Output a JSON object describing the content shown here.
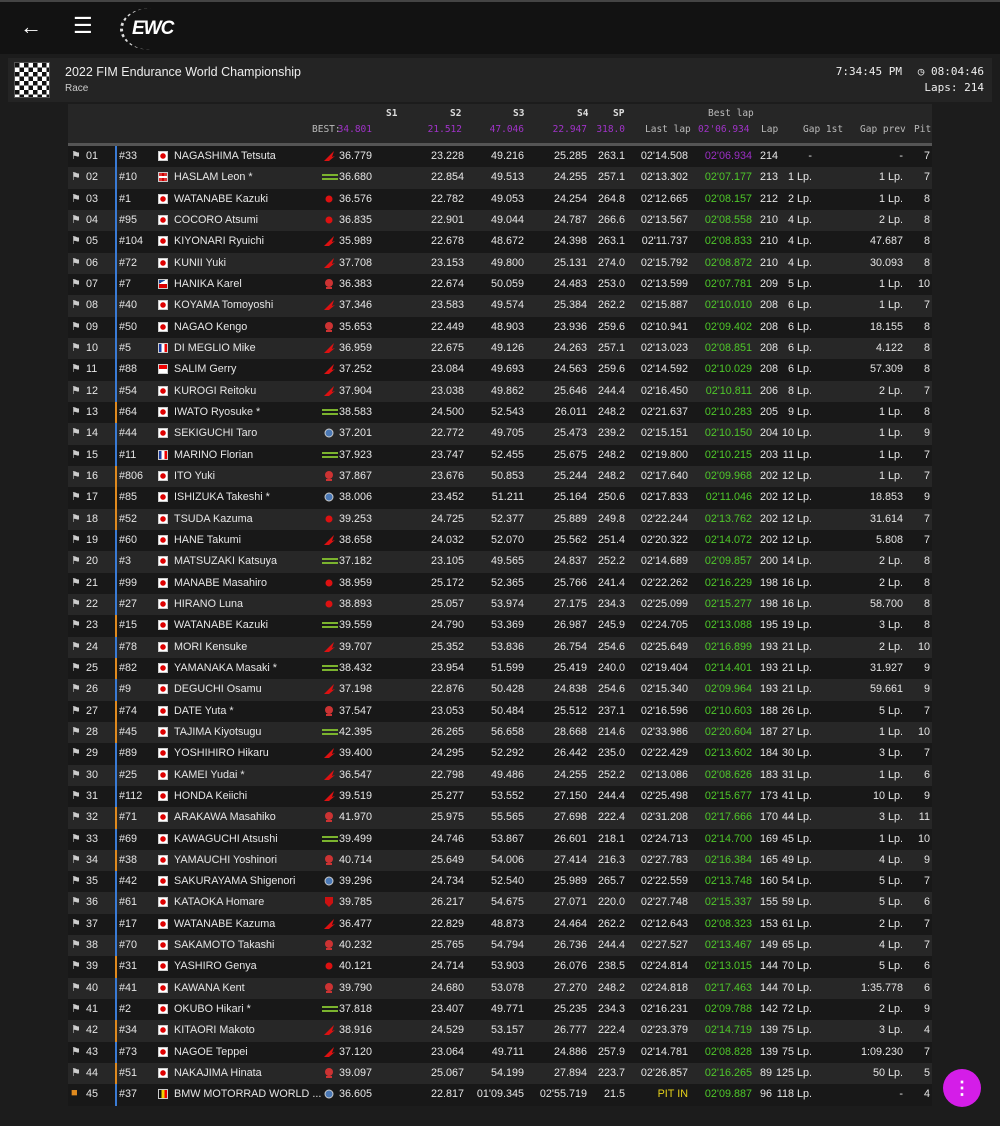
{
  "app": {
    "logo_text": "EWC"
  },
  "event": {
    "title": "2022 FIM Endurance World Championship",
    "session": "Race",
    "time": "7:34:45 PM",
    "remaining": "08:04:46",
    "laps": "Laps: 214"
  },
  "columns": {
    "best_label": "BEST:",
    "s1": "S1",
    "s2": "S2",
    "s3": "S3",
    "s4": "S4",
    "sp": "SP",
    "last_lap": "Last lap",
    "best_lap": "Best lap",
    "lap": "Lap",
    "gap_1st": "Gap 1st",
    "gap_prev": "Gap prev",
    "pit": "Pit"
  },
  "best": {
    "s1": "34.801",
    "s2": "21.512",
    "s3": "47.046",
    "s4": "22.947",
    "sp": "318.0",
    "best_lap": "02'06.934"
  },
  "colors": {
    "accent_purple": "#a033c8",
    "best_green": "#4fc82a",
    "fab": "#d41de8",
    "class_blue": "#3a7bd5",
    "class_orange": "#e08a1e"
  },
  "rows": [
    {
      "pos": "01",
      "num": "#33",
      "cls": "b",
      "flag": "jp",
      "name": "NAGASHIMA Tetsuta",
      "mfr": "honda",
      "s1": "36.779",
      "s2": "23.228",
      "s3": "49.216",
      "s4": "25.285",
      "sp": "263.1",
      "last": "02'14.508",
      "best": "02'06.934",
      "bestp": true,
      "lap": "214",
      "gap1": "-",
      "gapp": "-",
      "pit": "7"
    },
    {
      "pos": "02",
      "num": "#10",
      "cls": "b",
      "flag": "gb",
      "name": "HASLAM Leon *",
      "mfr": "kawasaki",
      "s1": "36.680",
      "s2": "22.854",
      "s3": "49.513",
      "s4": "24.255",
      "sp": "257.1",
      "last": "02'13.302",
      "best": "02'07.177",
      "lap": "213",
      "gap1": "1 Lp.",
      "gapp": "1 Lp.",
      "pit": "7"
    },
    {
      "pos": "03",
      "num": "#1",
      "cls": "b",
      "flag": "jp",
      "name": "WATANABE Kazuki",
      "mfr": "yamaha",
      "s1": "36.576",
      "s2": "22.782",
      "s3": "49.053",
      "s4": "24.254",
      "sp": "264.8",
      "last": "02'12.665",
      "best": "02'08.157",
      "lap": "212",
      "gap1": "2 Lp.",
      "gapp": "1 Lp.",
      "pit": "8"
    },
    {
      "pos": "04",
      "num": "#95",
      "cls": "b",
      "flag": "jp",
      "name": "COCORO Atsumi",
      "mfr": "yamaha",
      "s1": "36.835",
      "s2": "22.901",
      "s3": "49.044",
      "s4": "24.787",
      "sp": "266.6",
      "last": "02'13.567",
      "best": "02'08.558",
      "lap": "210",
      "gap1": "4 Lp.",
      "gapp": "2 Lp.",
      "pit": "8"
    },
    {
      "pos": "05",
      "num": "#104",
      "cls": "b",
      "flag": "jp",
      "name": "KIYONARI Ryuichi",
      "mfr": "honda",
      "s1": "35.989",
      "s2": "22.678",
      "s3": "48.672",
      "s4": "24.398",
      "sp": "263.1",
      "last": "02'11.737",
      "best": "02'08.833",
      "lap": "210",
      "gap1": "4 Lp.",
      "gapp": "47.687",
      "pit": "8"
    },
    {
      "pos": "06",
      "num": "#72",
      "cls": "b",
      "flag": "jp",
      "name": "KUNII Yuki",
      "mfr": "honda",
      "s1": "37.708",
      "s2": "23.153",
      "s3": "49.800",
      "s4": "25.131",
      "sp": "274.0",
      "last": "02'15.792",
      "best": "02'08.872",
      "lap": "210",
      "gap1": "4 Lp.",
      "gapp": "30.093",
      "pit": "8"
    },
    {
      "pos": "07",
      "num": "#7",
      "cls": "b",
      "flag": "cz",
      "name": "HANIKA Karel",
      "mfr": "suzuki",
      "s1": "36.383",
      "s2": "22.674",
      "s3": "50.059",
      "s4": "24.483",
      "sp": "253.0",
      "last": "02'13.599",
      "best": "02'07.781",
      "lap": "209",
      "gap1": "5 Lp.",
      "gapp": "1 Lp.",
      "pit": "10"
    },
    {
      "pos": "08",
      "num": "#40",
      "cls": "b",
      "flag": "jp",
      "name": "KOYAMA Tomoyoshi",
      "mfr": "honda",
      "s1": "37.346",
      "s2": "23.583",
      "s3": "49.574",
      "s4": "25.384",
      "sp": "262.2",
      "last": "02'15.887",
      "best": "02'10.010",
      "lap": "208",
      "gap1": "6 Lp.",
      "gapp": "1 Lp.",
      "pit": "7"
    },
    {
      "pos": "09",
      "num": "#50",
      "cls": "b",
      "flag": "jp",
      "name": "NAGAO Kengo",
      "mfr": "suzuki",
      "s1": "35.653",
      "s2": "22.449",
      "s3": "48.903",
      "s4": "23.936",
      "sp": "259.6",
      "last": "02'10.941",
      "best": "02'09.402",
      "lap": "208",
      "gap1": "6 Lp.",
      "gapp": "18.155",
      "pit": "8"
    },
    {
      "pos": "10",
      "num": "#5",
      "cls": "b",
      "flag": "fr",
      "name": "DI MEGLIO Mike",
      "mfr": "honda",
      "s1": "36.959",
      "s2": "22.675",
      "s3": "49.126",
      "s4": "24.263",
      "sp": "257.1",
      "last": "02'13.023",
      "best": "02'08.851",
      "lap": "208",
      "gap1": "6 Lp.",
      "gapp": "4.122",
      "pit": "8"
    },
    {
      "pos": "11",
      "num": "#88",
      "cls": "b",
      "flag": "id",
      "name": "SALIM Gerry",
      "mfr": "honda",
      "s1": "37.252",
      "s2": "23.084",
      "s3": "49.693",
      "s4": "24.563",
      "sp": "259.6",
      "last": "02'14.592",
      "best": "02'10.029",
      "lap": "208",
      "gap1": "6 Lp.",
      "gapp": "57.309",
      "pit": "8"
    },
    {
      "pos": "12",
      "num": "#54",
      "cls": "b",
      "flag": "jp",
      "name": "KUROGI Reitoku",
      "mfr": "honda",
      "s1": "37.904",
      "s2": "23.038",
      "s3": "49.862",
      "s4": "25.646",
      "sp": "244.4",
      "last": "02'16.450",
      "best": "02'10.811",
      "lap": "206",
      "gap1": "8 Lp.",
      "gapp": "2 Lp.",
      "pit": "7"
    },
    {
      "pos": "13",
      "num": "#64",
      "cls": "o",
      "flag": "jp",
      "name": "IWATO Ryosuke *",
      "mfr": "kawasaki",
      "s1": "38.583",
      "s2": "24.500",
      "s3": "52.543",
      "s4": "26.011",
      "sp": "248.2",
      "last": "02'21.637",
      "best": "02'10.283",
      "lap": "205",
      "gap1": "9 Lp.",
      "gapp": "1 Lp.",
      "pit": "8"
    },
    {
      "pos": "14",
      "num": "#44",
      "cls": "b",
      "flag": "jp",
      "name": "SEKIGUCHI Taro",
      "mfr": "bmw",
      "s1": "37.201",
      "s2": "22.772",
      "s3": "49.705",
      "s4": "25.473",
      "sp": "239.2",
      "last": "02'15.151",
      "best": "02'10.150",
      "lap": "204",
      "gap1": "10 Lp.",
      "gapp": "1 Lp.",
      "pit": "9"
    },
    {
      "pos": "15",
      "num": "#11",
      "cls": "b",
      "flag": "fr",
      "name": "MARINO Florian",
      "mfr": "kawasaki",
      "s1": "37.923",
      "s2": "23.747",
      "s3": "52.455",
      "s4": "25.675",
      "sp": "248.2",
      "last": "02'19.800",
      "best": "02'10.215",
      "lap": "203",
      "gap1": "11 Lp.",
      "gapp": "1 Lp.",
      "pit": "7"
    },
    {
      "pos": "16",
      "num": "#806",
      "cls": "o",
      "flag": "jp",
      "name": "ITO Yuki",
      "mfr": "suzuki",
      "s1": "37.867",
      "s2": "23.676",
      "s3": "50.853",
      "s4": "25.244",
      "sp": "248.2",
      "last": "02'17.640",
      "best": "02'09.968",
      "lap": "202",
      "gap1": "12 Lp.",
      "gapp": "1 Lp.",
      "pit": "7"
    },
    {
      "pos": "17",
      "num": "#85",
      "cls": "o",
      "flag": "jp",
      "name": "ISHIZUKA Takeshi *",
      "mfr": "bmw",
      "s1": "38.006",
      "s2": "23.452",
      "s3": "51.211",
      "s4": "25.164",
      "sp": "250.6",
      "last": "02'17.833",
      "best": "02'11.046",
      "lap": "202",
      "gap1": "12 Lp.",
      "gapp": "18.853",
      "pit": "9"
    },
    {
      "pos": "18",
      "num": "#52",
      "cls": "o",
      "flag": "jp",
      "name": "TSUDA Kazuma",
      "mfr": "yamaha",
      "s1": "39.253",
      "s2": "24.725",
      "s3": "52.377",
      "s4": "25.889",
      "sp": "249.8",
      "last": "02'22.244",
      "best": "02'13.762",
      "lap": "202",
      "gap1": "12 Lp.",
      "gapp": "31.614",
      "pit": "7"
    },
    {
      "pos": "19",
      "num": "#60",
      "cls": "b",
      "flag": "jp",
      "name": "HANE Takumi",
      "mfr": "honda",
      "s1": "38.658",
      "s2": "24.032",
      "s3": "52.070",
      "s4": "25.562",
      "sp": "251.4",
      "last": "02'20.322",
      "best": "02'14.072",
      "lap": "202",
      "gap1": "12 Lp.",
      "gapp": "5.808",
      "pit": "7"
    },
    {
      "pos": "20",
      "num": "#3",
      "cls": "b",
      "flag": "jp",
      "name": "MATSUZAKI Katsuya",
      "mfr": "kawasaki",
      "s1": "37.182",
      "s2": "23.105",
      "s3": "49.565",
      "s4": "24.837",
      "sp": "252.2",
      "last": "02'14.689",
      "best": "02'09.857",
      "lap": "200",
      "gap1": "14 Lp.",
      "gapp": "2 Lp.",
      "pit": "8"
    },
    {
      "pos": "21",
      "num": "#99",
      "cls": "b",
      "flag": "jp",
      "name": "MANABE Masahiro",
      "mfr": "yamaha",
      "s1": "38.959",
      "s2": "25.172",
      "s3": "52.365",
      "s4": "25.766",
      "sp": "241.4",
      "last": "02'22.262",
      "best": "02'16.229",
      "lap": "198",
      "gap1": "16 Lp.",
      "gapp": "2 Lp.",
      "pit": "8"
    },
    {
      "pos": "22",
      "num": "#27",
      "cls": "b",
      "flag": "jp",
      "name": "HIRANO Luna",
      "mfr": "yamaha",
      "s1": "38.893",
      "s2": "25.057",
      "s3": "53.974",
      "s4": "27.175",
      "sp": "234.3",
      "last": "02'25.099",
      "best": "02'15.277",
      "lap": "198",
      "gap1": "16 Lp.",
      "gapp": "58.700",
      "pit": "8"
    },
    {
      "pos": "23",
      "num": "#15",
      "cls": "o",
      "flag": "jp",
      "name": "WATANABE Kazuki",
      "mfr": "kawasaki",
      "s1": "39.559",
      "s2": "24.790",
      "s3": "53.369",
      "s4": "26.987",
      "sp": "245.9",
      "last": "02'24.705",
      "best": "02'13.088",
      "lap": "195",
      "gap1": "19 Lp.",
      "gapp": "3 Lp.",
      "pit": "8"
    },
    {
      "pos": "24",
      "num": "#78",
      "cls": "b",
      "flag": "jp",
      "name": "MORI Kensuke",
      "mfr": "honda",
      "s1": "39.707",
      "s2": "25.352",
      "s3": "53.836",
      "s4": "26.754",
      "sp": "254.6",
      "last": "02'25.649",
      "best": "02'16.899",
      "lap": "193",
      "gap1": "21 Lp.",
      "gapp": "2 Lp.",
      "pit": "10"
    },
    {
      "pos": "25",
      "num": "#82",
      "cls": "o",
      "flag": "jp",
      "name": "YAMANAKA Masaki *",
      "mfr": "kawasaki",
      "s1": "38.432",
      "s2": "23.954",
      "s3": "51.599",
      "s4": "25.419",
      "sp": "240.0",
      "last": "02'19.404",
      "best": "02'14.401",
      "lap": "193",
      "gap1": "21 Lp.",
      "gapp": "31.927",
      "pit": "9"
    },
    {
      "pos": "26",
      "num": "#9",
      "cls": "b",
      "flag": "jp",
      "name": "DEGUCHI Osamu",
      "mfr": "honda",
      "s1": "37.198",
      "s2": "22.876",
      "s3": "50.428",
      "s4": "24.838",
      "sp": "254.6",
      "last": "02'15.340",
      "best": "02'09.964",
      "lap": "193",
      "gap1": "21 Lp.",
      "gapp": "59.661",
      "pit": "9"
    },
    {
      "pos": "27",
      "num": "#74",
      "cls": "o",
      "flag": "jp",
      "name": "DATE Yuta *",
      "mfr": "suzuki",
      "s1": "37.547",
      "s2": "23.053",
      "s3": "50.484",
      "s4": "25.512",
      "sp": "237.1",
      "last": "02'16.596",
      "best": "02'10.603",
      "lap": "188",
      "gap1": "26 Lp.",
      "gapp": "5 Lp.",
      "pit": "7"
    },
    {
      "pos": "28",
      "num": "#45",
      "cls": "o",
      "flag": "jp",
      "name": "TAJIMA Kiyotsugu",
      "mfr": "kawasaki",
      "s1": "42.395",
      "s2": "26.265",
      "s3": "56.658",
      "s4": "28.668",
      "sp": "214.6",
      "last": "02'33.986",
      "best": "02'20.604",
      "lap": "187",
      "gap1": "27 Lp.",
      "gapp": "1 Lp.",
      "pit": "10"
    },
    {
      "pos": "29",
      "num": "#89",
      "cls": "b",
      "flag": "jp",
      "name": "YOSHIHIRO Hikaru",
      "mfr": "honda",
      "s1": "39.400",
      "s2": "24.295",
      "s3": "52.292",
      "s4": "26.442",
      "sp": "235.0",
      "last": "02'22.429",
      "best": "02'13.602",
      "lap": "184",
      "gap1": "30 Lp.",
      "gapp": "3 Lp.",
      "pit": "7"
    },
    {
      "pos": "30",
      "num": "#25",
      "cls": "b",
      "flag": "jp",
      "name": "KAMEI Yudai *",
      "mfr": "honda",
      "s1": "36.547",
      "s2": "22.798",
      "s3": "49.486",
      "s4": "24.255",
      "sp": "252.2",
      "last": "02'13.086",
      "best": "02'08.626",
      "lap": "183",
      "gap1": "31 Lp.",
      "gapp": "1 Lp.",
      "pit": "6"
    },
    {
      "pos": "31",
      "num": "#112",
      "cls": "b",
      "flag": "jp",
      "name": "HONDA Keiichi",
      "mfr": "honda",
      "s1": "39.519",
      "s2": "25.277",
      "s3": "53.552",
      "s4": "27.150",
      "sp": "244.4",
      "last": "02'25.498",
      "best": "02'15.677",
      "lap": "173",
      "gap1": "41 Lp.",
      "gapp": "10 Lp.",
      "pit": "9"
    },
    {
      "pos": "32",
      "num": "#71",
      "cls": "o",
      "flag": "jp",
      "name": "ARAKAWA Masahiko",
      "mfr": "suzuki",
      "s1": "41.970",
      "s2": "25.975",
      "s3": "55.565",
      "s4": "27.698",
      "sp": "222.4",
      "last": "02'31.208",
      "best": "02'17.666",
      "lap": "170",
      "gap1": "44 Lp.",
      "gapp": "3 Lp.",
      "pit": "11"
    },
    {
      "pos": "33",
      "num": "#69",
      "cls": "b",
      "flag": "jp",
      "name": "KAWAGUCHI Atsushi",
      "mfr": "kawasaki",
      "s1": "39.499",
      "s2": "24.746",
      "s3": "53.867",
      "s4": "26.601",
      "sp": "218.1",
      "last": "02'24.713",
      "best": "02'14.700",
      "lap": "169",
      "gap1": "45 Lp.",
      "gapp": "1 Lp.",
      "pit": "10"
    },
    {
      "pos": "34",
      "num": "#38",
      "cls": "o",
      "flag": "jp",
      "name": "YAMAUCHI Yoshinori",
      "mfr": "suzuki",
      "s1": "40.714",
      "s2": "25.649",
      "s3": "54.006",
      "s4": "27.414",
      "sp": "216.3",
      "last": "02'27.783",
      "best": "02'16.384",
      "lap": "165",
      "gap1": "49 Lp.",
      "gapp": "4 Lp.",
      "pit": "9"
    },
    {
      "pos": "35",
      "num": "#42",
      "cls": "b",
      "flag": "jp",
      "name": "SAKURAYAMA Shigenori",
      "mfr": "bmw",
      "s1": "39.296",
      "s2": "24.734",
      "s3": "52.540",
      "s4": "25.989",
      "sp": "265.7",
      "last": "02'22.559",
      "best": "02'13.748",
      "lap": "160",
      "gap1": "54 Lp.",
      "gapp": "5 Lp.",
      "pit": "7"
    },
    {
      "pos": "36",
      "num": "#61",
      "cls": "b",
      "flag": "jp",
      "name": "KATAOKA Homare",
      "mfr": "ducati",
      "s1": "39.785",
      "s2": "26.217",
      "s3": "54.675",
      "s4": "27.071",
      "sp": "220.0",
      "last": "02'27.748",
      "best": "02'15.337",
      "lap": "155",
      "gap1": "59 Lp.",
      "gapp": "5 Lp.",
      "pit": "6"
    },
    {
      "pos": "37",
      "num": "#17",
      "cls": "b",
      "flag": "jp",
      "name": "WATANABE Kazuma",
      "mfr": "honda",
      "s1": "36.477",
      "s2": "22.829",
      "s3": "48.873",
      "s4": "24.464",
      "sp": "262.2",
      "last": "02'12.643",
      "best": "02'08.323",
      "lap": "153",
      "gap1": "61 Lp.",
      "gapp": "2 Lp.",
      "pit": "7"
    },
    {
      "pos": "38",
      "num": "#70",
      "cls": "b",
      "flag": "jp",
      "name": "SAKAMOTO Takashi",
      "mfr": "suzuki",
      "s1": "40.232",
      "s2": "25.765",
      "s3": "54.794",
      "s4": "26.736",
      "sp": "244.4",
      "last": "02'27.527",
      "best": "02'13.467",
      "lap": "149",
      "gap1": "65 Lp.",
      "gapp": "4 Lp.",
      "pit": "7"
    },
    {
      "pos": "39",
      "num": "#31",
      "cls": "o",
      "flag": "jp",
      "name": "YASHIRO Genya",
      "mfr": "yamaha",
      "s1": "40.121",
      "s2": "24.714",
      "s3": "53.903",
      "s4": "26.076",
      "sp": "238.5",
      "last": "02'24.814",
      "best": "02'13.015",
      "lap": "144",
      "gap1": "70 Lp.",
      "gapp": "5 Lp.",
      "pit": "6"
    },
    {
      "pos": "40",
      "num": "#41",
      "cls": "b",
      "flag": "jp",
      "name": "KAWANA Kent",
      "mfr": "suzuki",
      "s1": "39.790",
      "s2": "24.680",
      "s3": "53.078",
      "s4": "27.270",
      "sp": "248.2",
      "last": "02'24.818",
      "best": "02'17.463",
      "lap": "144",
      "gap1": "70 Lp.",
      "gapp": "1:35.778",
      "pit": "6"
    },
    {
      "pos": "41",
      "num": "#2",
      "cls": "b",
      "flag": "jp",
      "name": "OKUBO Hikari *",
      "mfr": "kawasaki",
      "s1": "37.818",
      "s2": "23.407",
      "s3": "49.771",
      "s4": "25.235",
      "sp": "234.3",
      "last": "02'16.231",
      "best": "02'09.788",
      "lap": "142",
      "gap1": "72 Lp.",
      "gapp": "2 Lp.",
      "pit": "9"
    },
    {
      "pos": "42",
      "num": "#34",
      "cls": "o",
      "flag": "jp",
      "name": "KITAORI Makoto",
      "mfr": "honda",
      "s1": "38.916",
      "s2": "24.529",
      "s3": "53.157",
      "s4": "26.777",
      "sp": "222.4",
      "last": "02'23.379",
      "best": "02'14.719",
      "lap": "139",
      "gap1": "75 Lp.",
      "gapp": "3 Lp.",
      "pit": "4"
    },
    {
      "pos": "43",
      "num": "#73",
      "cls": "b",
      "flag": "jp",
      "name": "NAGOE Teppei",
      "mfr": "honda",
      "s1": "37.120",
      "s2": "23.064",
      "s3": "49.711",
      "s4": "24.886",
      "sp": "257.9",
      "last": "02'14.781",
      "best": "02'08.828",
      "lap": "139",
      "gap1": "75 Lp.",
      "gapp": "1:09.230",
      "pit": "7"
    },
    {
      "pos": "44",
      "num": "#51",
      "cls": "o",
      "flag": "jp",
      "name": "NAKAJIMA Hinata",
      "mfr": "suzuki",
      "s1": "39.097",
      "s2": "25.067",
      "s3": "54.199",
      "s4": "27.894",
      "sp": "223.7",
      "last": "02'26.857",
      "best": "02'16.265",
      "lap": "89",
      "gap1": "125 Lp.",
      "gapp": "50 Lp.",
      "pit": "5"
    },
    {
      "pos": "45",
      "num": "#37",
      "cls": "b",
      "flag": "be",
      "name": "BMW MOTORRAD WORLD ...",
      "mfr": "bmw",
      "pitflag": true,
      "s1": "36.605",
      "s2": "22.817",
      "s3": "01'09.345",
      "s4": "02'55.719",
      "sp": "21.5",
      "last": "PIT IN",
      "lastpit": true,
      "best": "02'09.887",
      "lap": "96",
      "gap1": "118 Lp.",
      "gapp": "-",
      "pit": "4"
    }
  ],
  "fab": {
    "icon": "more-vertical-icon",
    "label": "⋮"
  }
}
